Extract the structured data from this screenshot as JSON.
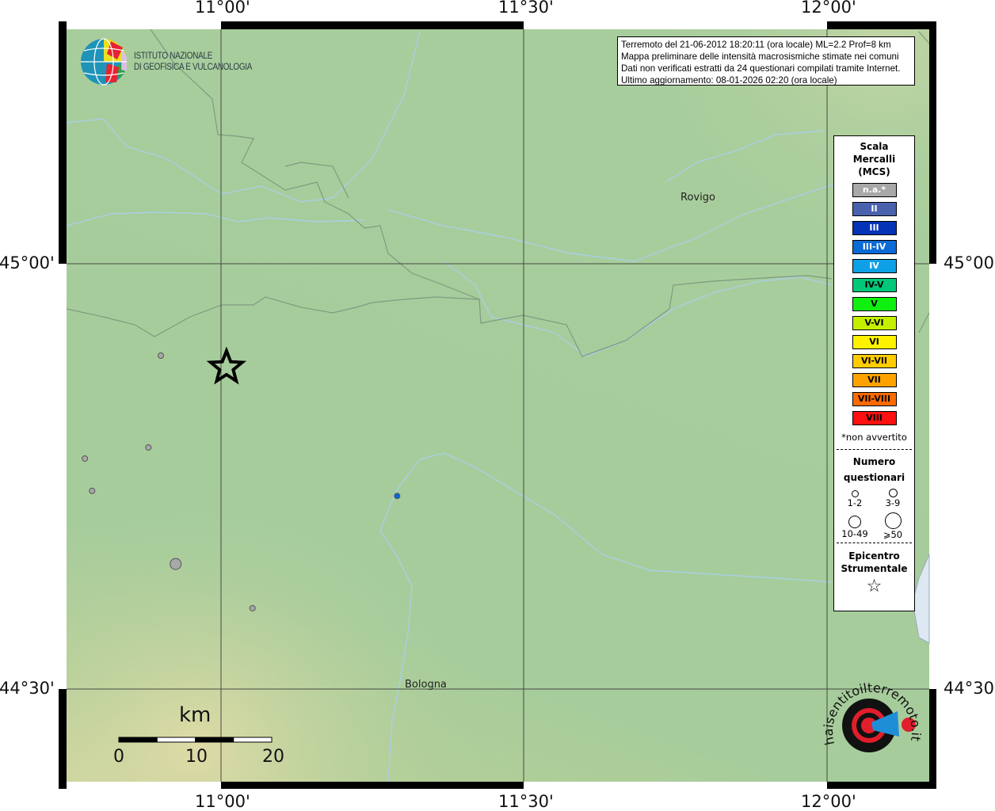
{
  "map": {
    "extent": {
      "lon": [
        10.745,
        12.17
      ],
      "lat": [
        44.391,
        45.276
      ]
    },
    "background_color": "#a6cc9b",
    "grid_lon": [
      11.0,
      11.5,
      12.0
    ],
    "grid_lat": [
      45.0,
      44.5
    ],
    "ticks": {
      "top": [
        "11°00'",
        "11°30'",
        "12°00'"
      ],
      "bottom": [
        "11°00'",
        "11°30'",
        "12°00'"
      ],
      "left": [
        "45°00'",
        "44°30'"
      ],
      "right": [
        "45°00'",
        "44°30'"
      ]
    },
    "places": [
      {
        "name": "Rovigo",
        "lon": 11.79,
        "lat": 45.071
      },
      {
        "name": "Bologna",
        "lon": 11.343,
        "lat": 44.494
      }
    ],
    "epicenter": {
      "lon": 11.009,
      "lat": 44.878,
      "icon": "star-icon"
    },
    "points": [
      {
        "lon": 10.9005,
        "lat": 44.892,
        "intensity": "n.a.*",
        "count_class": "1-2"
      },
      {
        "lon": 10.775,
        "lat": 44.771,
        "intensity": "n.a.*",
        "count_class": "1-2"
      },
      {
        "lon": 10.88,
        "lat": 44.784,
        "intensity": "n.a.*",
        "count_class": "1-2"
      },
      {
        "lon": 10.787,
        "lat": 44.733,
        "intensity": "n.a.*",
        "count_class": "1-2"
      },
      {
        "lon": 10.925,
        "lat": 44.647,
        "intensity": "n.a.*",
        "count_class": "3-9"
      },
      {
        "lon": 11.052,
        "lat": 44.595,
        "intensity": "n.a.*",
        "count_class": "1-2"
      },
      {
        "lon": 11.291,
        "lat": 44.727,
        "intensity": "III-IV",
        "count_class": "1-2"
      }
    ],
    "scale_bar": {
      "unit": "km",
      "labels": [
        "0",
        "10",
        "20"
      ],
      "max_km": 20
    }
  },
  "logo_ingv": {
    "line1": "ISTITUTO NAZIONALE",
    "line2": "DI GEOFISICA E VULCANOLOGIA"
  },
  "logo_hsit": {
    "text": "www.haisentitoilterremoto.it"
  },
  "info": {
    "line1": "Terremoto del 21-06-2012 18:20:11 (ora locale) ML=2.2 Prof=8 km",
    "line2": "Mappa preliminare delle intensità macrosismiche stimate nei comuni",
    "line3": "Dati non verificati estratti da 24 questionari compilati tramite Internet.",
    "line4": "Ultimo aggiornamento: 08-01-2026 02:20 (ora locale)"
  },
  "legend": {
    "title": [
      "Scala",
      "Mercalli",
      "(MCS)"
    ],
    "classes": [
      {
        "label": "n.a.*",
        "color": "#a8a8a8",
        "text": "#ffffff"
      },
      {
        "label": "II",
        "color": "#4a62ae",
        "text": "#ffffff"
      },
      {
        "label": "III",
        "color": "#0433b8",
        "text": "#ffffff"
      },
      {
        "label": "III-IV",
        "color": "#0a6ad6",
        "text": "#ffffff"
      },
      {
        "label": "IV",
        "color": "#0ea0e6",
        "text": "#ffffff"
      },
      {
        "label": "IV-V",
        "color": "#00c878",
        "text": "#000000"
      },
      {
        "label": "V",
        "color": "#10f010",
        "text": "#000000"
      },
      {
        "label": "V-VI",
        "color": "#c4f000",
        "text": "#000000"
      },
      {
        "label": "VI",
        "color": "#fff200",
        "text": "#000000"
      },
      {
        "label": "VI-VII",
        "color": "#ffcc00",
        "text": "#000000"
      },
      {
        "label": "VII",
        "color": "#ffa200",
        "text": "#000000"
      },
      {
        "label": "VII-VIII",
        "color": "#ff6a00",
        "text": "#000000"
      },
      {
        "label": "VIII",
        "color": "#ff1010",
        "text": "#000000"
      }
    ],
    "note": "*non avvertito",
    "count_title": [
      "Numero",
      "questionari"
    ],
    "count_classes": [
      "1-2",
      "3-9",
      "10-49",
      "⩾50"
    ],
    "epicenter_title": [
      "Epicentro",
      "Strumentale"
    ]
  }
}
